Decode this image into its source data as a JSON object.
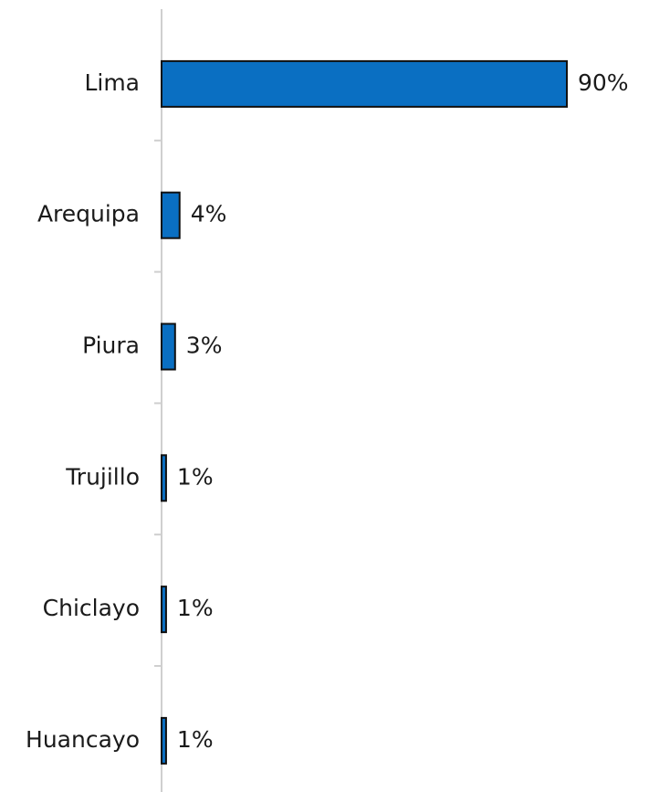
{
  "chart_data": {
    "type": "bar",
    "orientation": "horizontal",
    "categories": [
      "Lima",
      "Arequipa",
      "Piura",
      "Trujillo",
      "Chiclayo",
      "Huancayo"
    ],
    "values": [
      90,
      4,
      3,
      1,
      1,
      1
    ],
    "value_labels": [
      "90%",
      "4%",
      "3%",
      "1%",
      "1%",
      "1%"
    ],
    "xlim": [
      0,
      90
    ],
    "grid": false,
    "legend": "none"
  },
  "colors": {
    "bar": "#0a6fc2",
    "bar_outline": "#111111",
    "axis": "#cfcfcf",
    "text": "#1a1a1a"
  }
}
